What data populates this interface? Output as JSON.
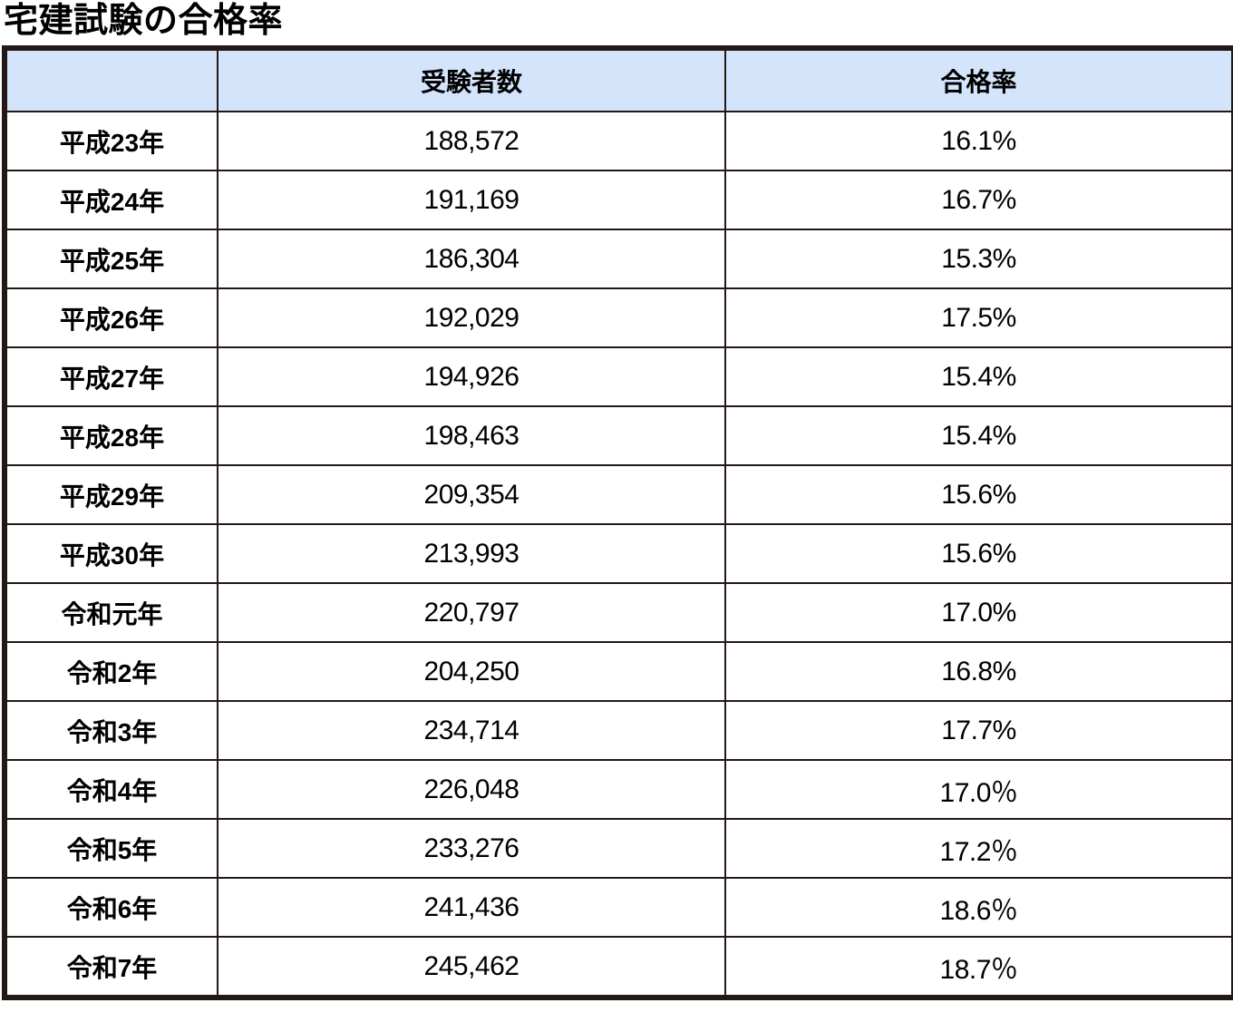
{
  "page_title": "宅建試験の合格率",
  "colors": {
    "header_bg": "#d4e4fb",
    "border": "#231815",
    "text": "#000000",
    "body_bg": "#ffffff"
  },
  "table": {
    "headers": {
      "year": "",
      "applicants": "受験者数",
      "pass_rate": "合格率"
    },
    "rows": [
      {
        "year": "平成23年",
        "applicants": "188,572",
        "pass_rate": "16.1%"
      },
      {
        "year": "平成24年",
        "applicants": "191,169",
        "pass_rate": "16.7%"
      },
      {
        "year": "平成25年",
        "applicants": "186,304",
        "pass_rate": "15.3%"
      },
      {
        "year": "平成26年",
        "applicants": "192,029",
        "pass_rate": "17.5%"
      },
      {
        "year": "平成27年",
        "applicants": "194,926",
        "pass_rate": "15.4%"
      },
      {
        "year": "平成28年",
        "applicants": "198,463",
        "pass_rate": "15.4%"
      },
      {
        "year": "平成29年",
        "applicants": "209,354",
        "pass_rate": "15.6%"
      },
      {
        "year": "平成30年",
        "applicants": "213,993",
        "pass_rate": "15.6%"
      },
      {
        "year": "令和元年",
        "applicants": "220,797",
        "pass_rate": "17.0%"
      },
      {
        "year": "令和2年",
        "applicants": "204,250",
        "pass_rate": "16.8%"
      },
      {
        "year": "令和3年",
        "applicants": "234,714",
        "pass_rate": "17.7%"
      },
      {
        "year": "令和4年",
        "applicants": "226,048",
        "pass_rate": "17.0％"
      },
      {
        "year": "令和5年",
        "applicants": "233,276",
        "pass_rate": "17.2％"
      },
      {
        "year": "令和6年",
        "applicants": "241,436",
        "pass_rate": "18.6％"
      },
      {
        "year": "令和7年",
        "applicants": "245,462",
        "pass_rate": "18.7％"
      }
    ]
  },
  "chart_data": {
    "type": "table",
    "title": "宅建試験の合格率",
    "columns": [
      "",
      "受験者数",
      "合格率"
    ],
    "categories": [
      "平成23年",
      "平成24年",
      "平成25年",
      "平成26年",
      "平成27年",
      "平成28年",
      "平成29年",
      "平成30年",
      "令和元年",
      "令和2年",
      "令和3年",
      "令和4年",
      "令和5年",
      "令和6年",
      "令和7年"
    ],
    "series": [
      {
        "name": "受験者数",
        "values": [
          188572,
          191169,
          186304,
          192029,
          194926,
          198463,
          209354,
          213993,
          220797,
          204250,
          234714,
          226048,
          233276,
          241436,
          245462
        ]
      },
      {
        "name": "合格率(%)",
        "values": [
          16.1,
          16.7,
          15.3,
          17.5,
          15.4,
          15.4,
          15.6,
          15.6,
          17.0,
          16.8,
          17.7,
          17.0,
          17.2,
          18.6,
          18.7
        ]
      }
    ],
    "layout": {
      "header_background": "#d4e4fb",
      "grid": "on",
      "border_color": "#231815"
    }
  }
}
